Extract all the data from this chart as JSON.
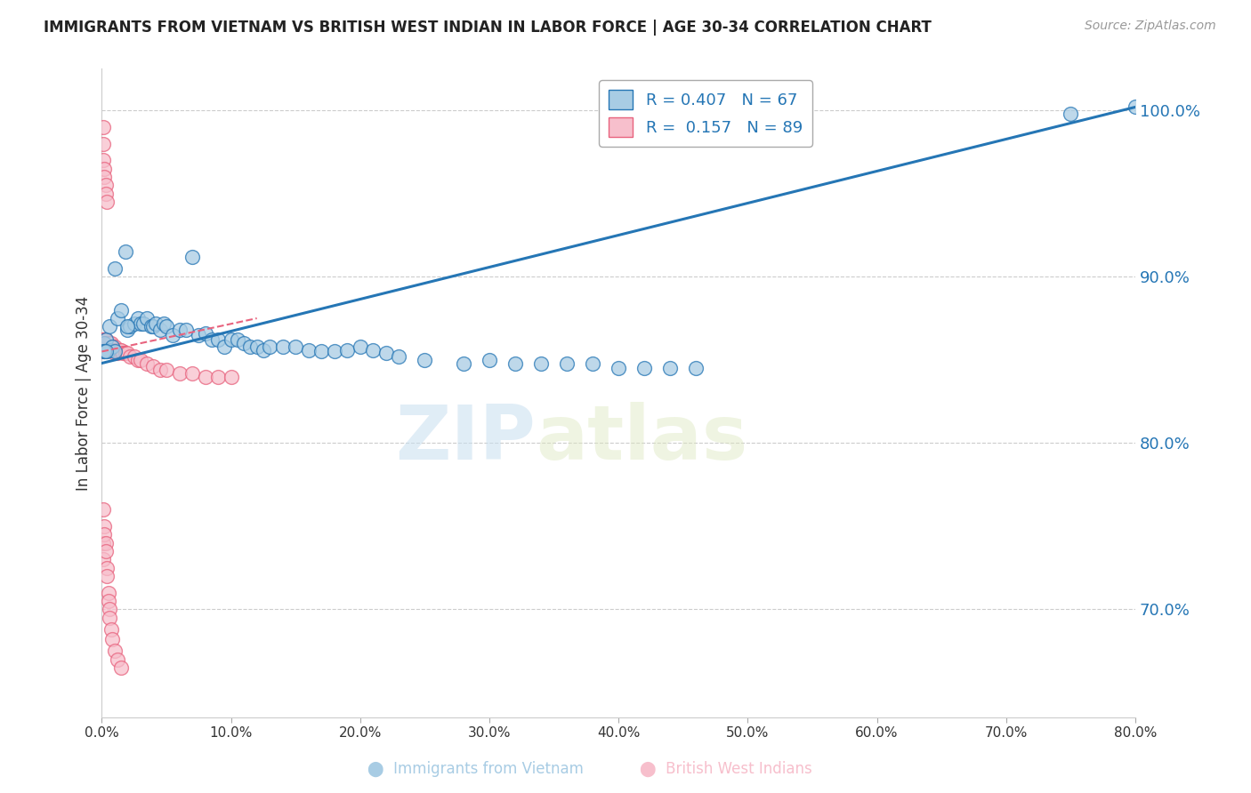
{
  "title": "IMMIGRANTS FROM VIETNAM VS BRITISH WEST INDIAN IN LABOR FORCE | AGE 30-34 CORRELATION CHART",
  "source": "Source: ZipAtlas.com",
  "ylabel": "In Labor Force | Age 30-34",
  "r_vietnam": 0.407,
  "n_vietnam": 67,
  "r_bwi": 0.157,
  "n_bwi": 89,
  "y_ticks_right": [
    70.0,
    80.0,
    90.0,
    100.0
  ],
  "xlim": [
    0.0,
    0.8
  ],
  "ylim": [
    0.635,
    1.025
  ],
  "blue_color": "#a8cce4",
  "blue_line_color": "#2576b5",
  "pink_color": "#f7bfcc",
  "pink_line_color": "#e8637e",
  "watermark_zip": "ZIP",
  "watermark_atlas": "atlas",
  "vietnam_scatter_x": [
    0.002,
    0.003,
    0.004,
    0.005,
    0.006,
    0.008,
    0.01,
    0.012,
    0.015,
    0.018,
    0.02,
    0.022,
    0.025,
    0.028,
    0.03,
    0.032,
    0.035,
    0.038,
    0.04,
    0.042,
    0.045,
    0.048,
    0.05,
    0.055,
    0.06,
    0.065,
    0.07,
    0.075,
    0.08,
    0.085,
    0.09,
    0.095,
    0.1,
    0.105,
    0.11,
    0.115,
    0.12,
    0.125,
    0.13,
    0.14,
    0.15,
    0.16,
    0.17,
    0.18,
    0.19,
    0.2,
    0.21,
    0.22,
    0.23,
    0.25,
    0.28,
    0.3,
    0.32,
    0.34,
    0.36,
    0.38,
    0.4,
    0.42,
    0.44,
    0.46,
    0.002,
    0.002,
    0.003,
    0.01,
    0.02,
    0.75,
    0.8
  ],
  "vietnam_scatter_y": [
    0.86,
    0.862,
    0.855,
    0.856,
    0.87,
    0.858,
    0.855,
    0.875,
    0.88,
    0.915,
    0.868,
    0.87,
    0.872,
    0.875,
    0.872,
    0.872,
    0.875,
    0.87,
    0.87,
    0.872,
    0.868,
    0.872,
    0.87,
    0.865,
    0.868,
    0.868,
    0.912,
    0.865,
    0.866,
    0.862,
    0.862,
    0.858,
    0.862,
    0.862,
    0.86,
    0.858,
    0.858,
    0.856,
    0.858,
    0.858,
    0.858,
    0.856,
    0.855,
    0.855,
    0.856,
    0.858,
    0.856,
    0.854,
    0.852,
    0.85,
    0.848,
    0.85,
    0.848,
    0.848,
    0.848,
    0.848,
    0.845,
    0.845,
    0.845,
    0.845,
    0.855,
    0.855,
    0.855,
    0.905,
    0.87,
    0.998,
    1.002
  ],
  "bwi_scatter_x": [
    0.001,
    0.001,
    0.001,
    0.001,
    0.001,
    0.001,
    0.001,
    0.001,
    0.002,
    0.002,
    0.002,
    0.002,
    0.002,
    0.002,
    0.002,
    0.003,
    0.003,
    0.003,
    0.003,
    0.003,
    0.004,
    0.004,
    0.004,
    0.004,
    0.005,
    0.005,
    0.005,
    0.005,
    0.006,
    0.006,
    0.006,
    0.007,
    0.007,
    0.007,
    0.008,
    0.008,
    0.009,
    0.009,
    0.01,
    0.01,
    0.01,
    0.012,
    0.012,
    0.014,
    0.015,
    0.016,
    0.018,
    0.02,
    0.022,
    0.025,
    0.028,
    0.03,
    0.035,
    0.04,
    0.045,
    0.05,
    0.06,
    0.07,
    0.08,
    0.09,
    0.1,
    0.001,
    0.001,
    0.001,
    0.002,
    0.002,
    0.003,
    0.003,
    0.004,
    0.004,
    0.005,
    0.005,
    0.006,
    0.006,
    0.007,
    0.008,
    0.01,
    0.012,
    0.015,
    0.001,
    0.001,
    0.001,
    0.002,
    0.002,
    0.003,
    0.003,
    0.004
  ],
  "bwi_scatter_y": [
    0.86,
    0.862,
    0.855,
    0.857,
    0.858,
    0.86,
    0.862,
    0.857,
    0.858,
    0.86,
    0.858,
    0.86,
    0.862,
    0.858,
    0.862,
    0.858,
    0.86,
    0.862,
    0.858,
    0.86,
    0.858,
    0.86,
    0.858,
    0.856,
    0.858,
    0.86,
    0.858,
    0.856,
    0.858,
    0.86,
    0.858,
    0.858,
    0.86,
    0.856,
    0.858,
    0.856,
    0.858,
    0.856,
    0.858,
    0.856,
    0.854,
    0.854,
    0.856,
    0.856,
    0.856,
    0.854,
    0.854,
    0.854,
    0.852,
    0.852,
    0.85,
    0.85,
    0.848,
    0.846,
    0.844,
    0.844,
    0.842,
    0.842,
    0.84,
    0.84,
    0.84,
    0.76,
    0.74,
    0.73,
    0.75,
    0.745,
    0.74,
    0.735,
    0.725,
    0.72,
    0.71,
    0.705,
    0.7,
    0.695,
    0.688,
    0.682,
    0.675,
    0.67,
    0.665,
    0.99,
    0.98,
    0.97,
    0.965,
    0.96,
    0.955,
    0.95,
    0.945
  ],
  "blue_regression": [
    0.0,
    0.8,
    0.848,
    1.002
  ],
  "pink_regression": [
    0.0,
    0.12,
    0.855,
    0.875
  ]
}
